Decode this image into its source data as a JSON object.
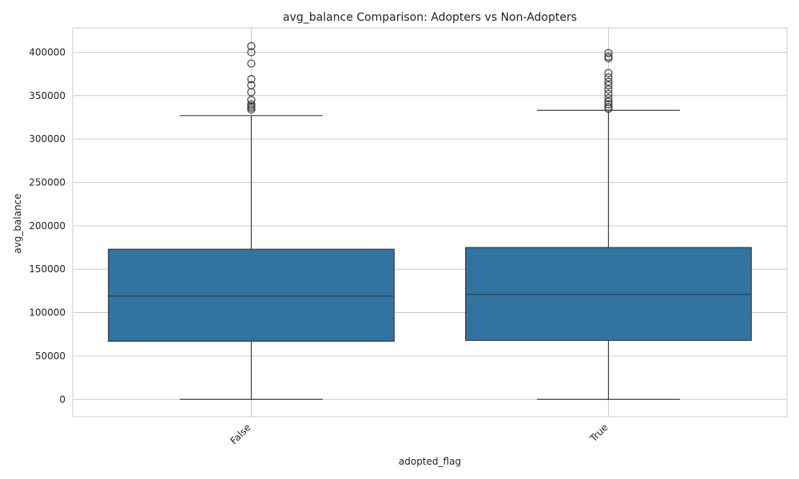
{
  "chart_data": {
    "type": "box",
    "title": "avg_balance Comparison: Adopters vs Non-Adopters",
    "xlabel": "adopted_flag",
    "ylabel": "avg_balance",
    "categories": [
      "False",
      "True"
    ],
    "ylim": [
      -20000,
      428000
    ],
    "yticks": [
      0,
      50000,
      100000,
      150000,
      200000,
      250000,
      300000,
      350000,
      400000
    ],
    "ytick_labels": [
      "0",
      "50000",
      "100000",
      "150000",
      "200000",
      "250000",
      "300000",
      "350000",
      "400000"
    ],
    "grid": true,
    "box_color": "#3274a1",
    "line_color": "#3d3d3d",
    "grid_color": "#cccccc",
    "boxes": [
      {
        "category": "False",
        "whisker_low": 0,
        "q1": 67000,
        "median": 119000,
        "q3": 173000,
        "whisker_high": 327000,
        "outliers": [
          334000,
          336000,
          338000,
          340000,
          345000,
          354000,
          362000,
          369000,
          387000,
          400000,
          407000
        ]
      },
      {
        "category": "True",
        "whisker_low": 0,
        "q1": 68000,
        "median": 121000,
        "q3": 175000,
        "whisker_high": 333000,
        "outliers": [
          335000,
          337000,
          340000,
          343000,
          347000,
          352000,
          357000,
          362000,
          366000,
          371000,
          376000,
          393000,
          395000,
          399000
        ]
      }
    ]
  }
}
